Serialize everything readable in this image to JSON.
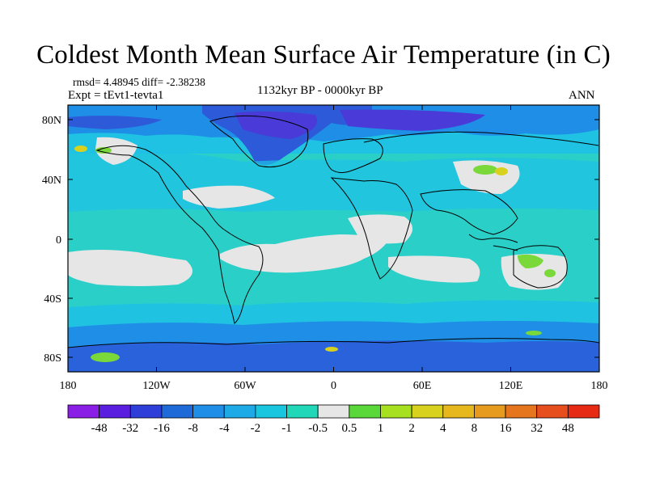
{
  "title": "Coldest Month Mean Surface Air Temperature (in C)",
  "stats": "rmsd= 4.48945 diff= -2.38238",
  "experiment": "Expt = tEvt1-tevta1",
  "period": "1132kyr BP - 0000kyr BP",
  "season": "ANN",
  "lat_labels": [
    "80N",
    "40N",
    "0",
    "40S",
    "80S"
  ],
  "lon_labels": [
    "180",
    "120W",
    "60W",
    "0",
    "60E",
    "120E",
    "180"
  ],
  "colorbar": {
    "labels": [
      "-48",
      "-32",
      "-16",
      "-8",
      "-4",
      "-2",
      "-1",
      "-0.5",
      "0.5",
      "1",
      "2",
      "4",
      "8",
      "16",
      "32",
      "48"
    ],
    "colors": [
      "#8a1ee6",
      "#5a1ee0",
      "#2d3fd8",
      "#1e6ad8",
      "#1e8ee6",
      "#1eaae6",
      "#18c6e0",
      "#20d8b8",
      "#e6e6e6",
      "#5ad83a",
      "#a6e01e",
      "#d8d21e",
      "#e6b81e",
      "#e69a1e",
      "#e6761e",
      "#e64e1e",
      "#e62a14"
    ]
  },
  "palette": {
    "background": "#2ad0c8",
    "cyan": "#1ec0e6",
    "blue": "#1e8ee6",
    "deep_blue": "#2d5ad8",
    "indigo": "#4a3ad8",
    "neutral": "#e6e6e6",
    "green": "#7ad83a",
    "yellow": "#d8d21e"
  }
}
